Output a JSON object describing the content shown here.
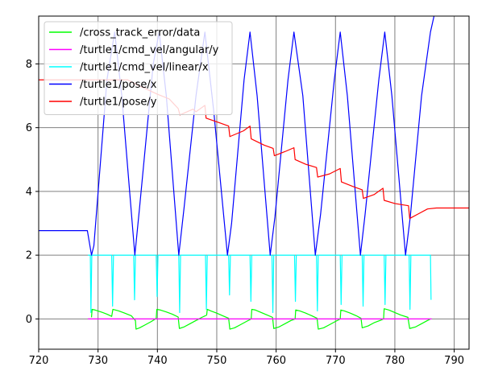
{
  "chart_data": {
    "type": "line",
    "title": "",
    "xlabel": "",
    "ylabel": "",
    "xlim": [
      720,
      792.5
    ],
    "ylim": [
      -0.95,
      9.5
    ],
    "grid": true,
    "legend_placement": "top-left",
    "x_ticks": [
      720,
      730,
      740,
      750,
      760,
      770,
      780,
      790
    ],
    "x_tick_labels": [
      "720",
      "730",
      "740",
      "750",
      "760",
      "770",
      "780",
      "790"
    ],
    "y_ticks": [
      0,
      2,
      4,
      6,
      8
    ],
    "y_tick_labels": [
      "0",
      "2",
      "4",
      "6",
      "8"
    ],
    "series": [
      {
        "name": "/cross_track_error/data",
        "color": "#00ff00",
        "points": [
          [
            728.9,
            0.05
          ],
          [
            729.0,
            0.3
          ],
          [
            729.5,
            0.28
          ],
          [
            730.5,
            0.22
          ],
          [
            731.5,
            0.15
          ],
          [
            732.3,
            0.08
          ],
          [
            732.5,
            0.3
          ],
          [
            733.5,
            0.25
          ],
          [
            734.5,
            0.18
          ],
          [
            735.6,
            0.1
          ],
          [
            736.3,
            -0.05
          ],
          [
            736.4,
            -0.32
          ],
          [
            737.0,
            -0.28
          ],
          [
            738.0,
            -0.18
          ],
          [
            739.0,
            -0.08
          ],
          [
            739.8,
            0.02
          ],
          [
            739.9,
            0.3
          ],
          [
            740.5,
            0.28
          ],
          [
            741.5,
            0.22
          ],
          [
            742.5,
            0.15
          ],
          [
            743.5,
            0.06
          ],
          [
            743.7,
            -0.3
          ],
          [
            744.5,
            -0.25
          ],
          [
            745.5,
            -0.15
          ],
          [
            746.5,
            -0.05
          ],
          [
            747.5,
            0.05
          ],
          [
            748.3,
            0.12
          ],
          [
            748.4,
            0.3
          ],
          [
            749.0,
            0.25
          ],
          [
            750.0,
            0.18
          ],
          [
            751.0,
            0.1
          ],
          [
            752.0,
            0.02
          ],
          [
            752.2,
            -0.32
          ],
          [
            753.0,
            -0.28
          ],
          [
            754.0,
            -0.18
          ],
          [
            755.0,
            -0.08
          ],
          [
            755.8,
            0.0
          ],
          [
            755.9,
            0.3
          ],
          [
            756.5,
            0.28
          ],
          [
            757.5,
            0.2
          ],
          [
            758.5,
            0.12
          ],
          [
            759.4,
            0.05
          ],
          [
            759.6,
            -0.3
          ],
          [
            760.5,
            -0.25
          ],
          [
            761.5,
            -0.15
          ],
          [
            762.5,
            -0.05
          ],
          [
            763.2,
            0.0
          ],
          [
            763.3,
            0.28
          ],
          [
            764.0,
            0.25
          ],
          [
            765.0,
            0.18
          ],
          [
            766.0,
            0.1
          ],
          [
            766.9,
            0.02
          ],
          [
            767.1,
            -0.32
          ],
          [
            768.0,
            -0.28
          ],
          [
            769.0,
            -0.18
          ],
          [
            770.0,
            -0.08
          ],
          [
            770.8,
            0.0
          ],
          [
            770.9,
            0.28
          ],
          [
            771.5,
            0.25
          ],
          [
            772.5,
            0.18
          ],
          [
            773.5,
            0.1
          ],
          [
            774.3,
            0.02
          ],
          [
            774.5,
            -0.28
          ],
          [
            775.5,
            -0.22
          ],
          [
            776.5,
            -0.12
          ],
          [
            777.5,
            -0.05
          ],
          [
            778.1,
            0.0
          ],
          [
            778.2,
            0.32
          ],
          [
            779.0,
            0.28
          ],
          [
            780.0,
            0.2
          ],
          [
            781.0,
            0.12
          ],
          [
            782.2,
            0.05
          ],
          [
            782.5,
            -0.3
          ],
          [
            783.5,
            -0.25
          ],
          [
            784.5,
            -0.15
          ],
          [
            785.5,
            -0.05
          ],
          [
            786.0,
            0.0
          ]
        ]
      },
      {
        "name": "/turtle1/cmd_vel/angular/y",
        "color": "#ff00ff",
        "points": [
          [
            728.3,
            0.0
          ],
          [
            786.2,
            0.0
          ]
        ]
      },
      {
        "name": "/turtle1/cmd_vel/linear/x",
        "color": "#00ffff",
        "points": [
          [
            728.3,
            2.0
          ],
          [
            728.7,
            2.0
          ],
          [
            728.8,
            0.2
          ],
          [
            728.95,
            2.0
          ],
          [
            732.3,
            2.0
          ],
          [
            732.45,
            0.4
          ],
          [
            732.6,
            2.0
          ],
          [
            736.0,
            2.0
          ],
          [
            736.15,
            0.6
          ],
          [
            736.3,
            2.0
          ],
          [
            739.8,
            2.0
          ],
          [
            739.95,
            0.7
          ],
          [
            740.1,
            2.0
          ],
          [
            743.6,
            2.0
          ],
          [
            743.75,
            0.2
          ],
          [
            743.9,
            2.0
          ],
          [
            748.1,
            2.0
          ],
          [
            748.25,
            0.3
          ],
          [
            748.4,
            2.0
          ],
          [
            752.0,
            2.0
          ],
          [
            752.15,
            0.75
          ],
          [
            752.3,
            2.0
          ],
          [
            755.6,
            2.0
          ],
          [
            755.75,
            0.55
          ],
          [
            755.9,
            2.0
          ],
          [
            759.3,
            2.0
          ],
          [
            759.45,
            0.2
          ],
          [
            759.6,
            2.0
          ],
          [
            763.1,
            2.0
          ],
          [
            763.25,
            0.55
          ],
          [
            763.4,
            2.0
          ],
          [
            766.8,
            2.0
          ],
          [
            766.95,
            0.25
          ],
          [
            767.1,
            2.0
          ],
          [
            770.8,
            2.0
          ],
          [
            770.95,
            0.45
          ],
          [
            771.1,
            2.0
          ],
          [
            774.5,
            2.0
          ],
          [
            774.65,
            0.4
          ],
          [
            774.8,
            2.0
          ],
          [
            778.2,
            2.0
          ],
          [
            778.35,
            0.45
          ],
          [
            778.5,
            2.0
          ],
          [
            782.4,
            2.0
          ],
          [
            782.55,
            0.3
          ],
          [
            782.7,
            2.0
          ],
          [
            786.0,
            2.0
          ],
          [
            786.1,
            0.6
          ]
        ]
      },
      {
        "name": "/turtle1/pose/x",
        "color": "#0000ff",
        "points": [
          [
            720.0,
            2.77
          ],
          [
            728.2,
            2.77
          ],
          [
            728.9,
            2.0
          ],
          [
            729.3,
            2.3
          ],
          [
            731.5,
            7.5
          ],
          [
            732.8,
            9.0
          ],
          [
            734.0,
            7.0
          ],
          [
            736.2,
            2.0
          ],
          [
            737.0,
            3.5
          ],
          [
            739.3,
            8.0
          ],
          [
            740.3,
            9.0
          ],
          [
            741.5,
            7.0
          ],
          [
            743.6,
            2.0
          ],
          [
            744.5,
            3.5
          ],
          [
            746.5,
            7.0
          ],
          [
            748.0,
            9.0
          ],
          [
            749.5,
            6.5
          ],
          [
            751.8,
            2.0
          ],
          [
            752.5,
            3.0
          ],
          [
            754.6,
            7.5
          ],
          [
            755.6,
            9.0
          ],
          [
            756.8,
            7.0
          ],
          [
            759.0,
            2.0
          ],
          [
            759.8,
            3.2
          ],
          [
            762.0,
            7.5
          ],
          [
            763.0,
            9.0
          ],
          [
            764.5,
            7.0
          ],
          [
            766.6,
            2.0
          ],
          [
            767.5,
            3.3
          ],
          [
            769.8,
            7.5
          ],
          [
            770.8,
            9.0
          ],
          [
            772.0,
            7.0
          ],
          [
            774.2,
            2.0
          ],
          [
            775.0,
            3.3
          ],
          [
            777.3,
            7.5
          ],
          [
            778.3,
            9.0
          ],
          [
            779.5,
            7.0
          ],
          [
            781.8,
            2.0
          ],
          [
            782.6,
            3.2
          ],
          [
            784.5,
            7.0
          ],
          [
            786.0,
            9.0
          ],
          [
            786.6,
            9.5
          ]
        ]
      },
      {
        "name": "/turtle1/pose/y",
        "color": "#ff0000",
        "points": [
          [
            720.0,
            7.5
          ],
          [
            730.0,
            7.5
          ],
          [
            735.0,
            7.5
          ],
          [
            736.5,
            7.35
          ],
          [
            740.0,
            7.05
          ],
          [
            742.0,
            6.9
          ],
          [
            743.5,
            6.6
          ],
          [
            743.8,
            6.4
          ],
          [
            746.0,
            6.58
          ],
          [
            746.5,
            6.5
          ],
          [
            748.0,
            6.7
          ],
          [
            748.2,
            6.3
          ],
          [
            750.5,
            6.15
          ],
          [
            752.0,
            6.05
          ],
          [
            752.2,
            5.72
          ],
          [
            754.5,
            5.9
          ],
          [
            755.6,
            6.05
          ],
          [
            755.8,
            5.65
          ],
          [
            758.0,
            5.45
          ],
          [
            759.5,
            5.35
          ],
          [
            759.7,
            5.12
          ],
          [
            761.5,
            5.25
          ],
          [
            763.0,
            5.37
          ],
          [
            763.2,
            5.0
          ],
          [
            765.0,
            4.85
          ],
          [
            766.8,
            4.75
          ],
          [
            767.0,
            4.45
          ],
          [
            769.0,
            4.55
          ],
          [
            770.8,
            4.72
          ],
          [
            771.0,
            4.3
          ],
          [
            773.0,
            4.15
          ],
          [
            774.5,
            4.05
          ],
          [
            774.7,
            3.78
          ],
          [
            776.5,
            3.9
          ],
          [
            778.0,
            4.1
          ],
          [
            778.2,
            3.72
          ],
          [
            780.0,
            3.62
          ],
          [
            782.3,
            3.55
          ],
          [
            782.5,
            3.15
          ],
          [
            784.0,
            3.3
          ],
          [
            785.5,
            3.45
          ],
          [
            787.0,
            3.48
          ],
          [
            792.5,
            3.48
          ]
        ]
      }
    ]
  }
}
